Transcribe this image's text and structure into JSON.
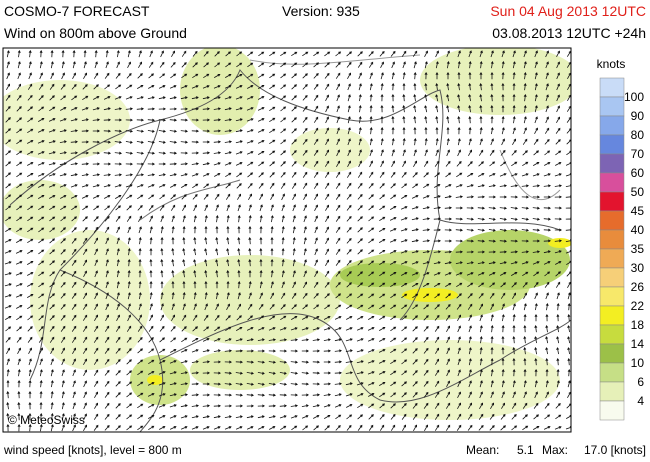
{
  "header": {
    "title": "COSMO-7 FORECAST",
    "version": "Version: 935",
    "valid": "Sun 04 Aug 2013 12UTC",
    "subtitle": "Wind on 800m above Ground",
    "run": "03.08.2013 12UTC +24h"
  },
  "map": {
    "copyright": "© MeteoSwiss"
  },
  "legend": {
    "unit": "knots",
    "labels": [
      "100",
      "90",
      "80",
      "70",
      "60",
      "50",
      "45",
      "40",
      "35",
      "30",
      "26",
      "22",
      "18",
      "14",
      "10",
      "6",
      "4"
    ],
    "colors": [
      "#c9dcf7",
      "#a9c6f2",
      "#86a8ea",
      "#6687de",
      "#7d64b4",
      "#d84f9c",
      "#e3142e",
      "#e66c2c",
      "#e88c3c",
      "#efaa55",
      "#f6cf78",
      "#f7e86a",
      "#f3ee22",
      "#c7dc3e",
      "#9cc048",
      "#c6df86",
      "#e6f0b8",
      "#f8fbee"
    ]
  },
  "footer": {
    "description": "wind speed [knots], level = 800 m",
    "mean_label": "Mean:",
    "mean": "5.1",
    "max_label": "Max:",
    "max": "17.0 [knots]"
  }
}
